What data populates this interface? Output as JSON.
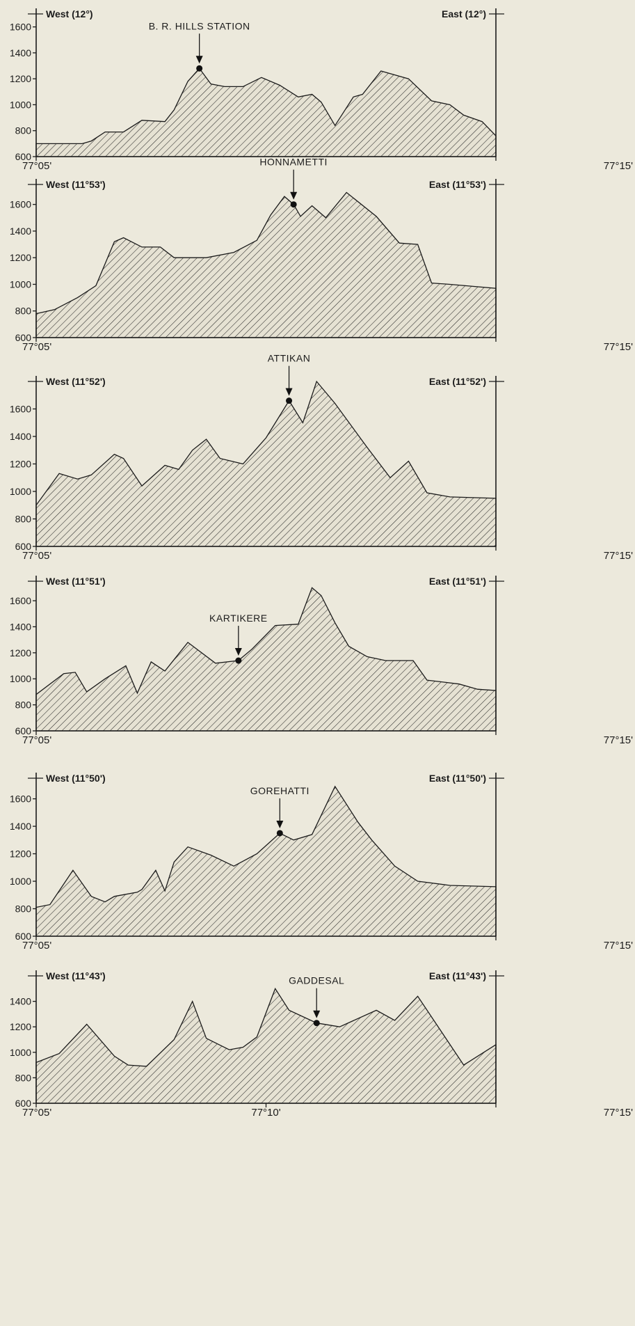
{
  "chart_data": [
    {
      "type": "area",
      "west_label": "West (12°)",
      "east_label": "East (12°)",
      "marker": {
        "name": "B. R. HILLS STATION",
        "x": 3.55,
        "y": 1280
      },
      "xlim_label": [
        "77°05'",
        "77°15'"
      ],
      "xlim": [
        0,
        10
      ],
      "ylim": [
        600,
        1700
      ],
      "yticks": [
        600,
        800,
        1000,
        1200,
        1400,
        1600
      ],
      "x": [
        0,
        0.5,
        1.0,
        1.2,
        1.5,
        1.9,
        2.3,
        2.8,
        3.0,
        3.3,
        3.55,
        3.8,
        4.1,
        4.5,
        4.9,
        5.3,
        5.7,
        6.0,
        6.2,
        6.5,
        6.9,
        7.1,
        7.5,
        8.1,
        8.6,
        9.0,
        9.3,
        9.7,
        10.0
      ],
      "values": [
        700,
        700,
        700,
        720,
        790,
        790,
        880,
        870,
        960,
        1180,
        1280,
        1160,
        1140,
        1140,
        1210,
        1150,
        1060,
        1080,
        1020,
        840,
        1060,
        1080,
        1260,
        1200,
        1030,
        1000,
        920,
        870,
        760
      ]
    },
    {
      "type": "area",
      "west_label": "West (11°53')",
      "east_label": "East (11°53')",
      "marker": {
        "name": "HONNAMETTI",
        "x": 5.6,
        "y": 1600
      },
      "xlim_label": [
        "77°05'",
        "77°15'"
      ],
      "xlim": [
        0,
        10
      ],
      "ylim": [
        600,
        1750
      ],
      "yticks": [
        600,
        800,
        1000,
        1200,
        1400,
        1600
      ],
      "x": [
        0,
        0.4,
        0.9,
        1.3,
        1.7,
        1.9,
        2.3,
        2.7,
        3.0,
        3.7,
        4.3,
        4.8,
        5.1,
        5.4,
        5.6,
        5.75,
        6.0,
        6.3,
        6.75,
        7.4,
        7.9,
        8.3,
        8.6,
        9.0,
        10.0
      ],
      "values": [
        780,
        810,
        900,
        990,
        1320,
        1350,
        1280,
        1280,
        1200,
        1200,
        1240,
        1330,
        1520,
        1660,
        1600,
        1510,
        1590,
        1500,
        1690,
        1510,
        1310,
        1300,
        1010,
        1000,
        970
      ]
    },
    {
      "type": "area",
      "west_label": "West (11°52')",
      "east_label": "East (11°52')",
      "marker": {
        "name": "ATTIKAN",
        "x": 5.5,
        "y": 1660
      },
      "xlim_label": [
        "77°05'",
        "77°15'"
      ],
      "xlim": [
        0,
        10
      ],
      "ylim": [
        600,
        1800
      ],
      "yticks": [
        600,
        800,
        1000,
        1200,
        1400,
        1600
      ],
      "x": [
        0,
        0.5,
        0.9,
        1.2,
        1.7,
        1.9,
        2.3,
        2.8,
        3.1,
        3.4,
        3.7,
        4.0,
        4.5,
        5.0,
        5.5,
        5.8,
        6.1,
        6.5,
        7.2,
        7.7,
        8.1,
        8.5,
        9.0,
        10.0
      ],
      "values": [
        900,
        1130,
        1090,
        1120,
        1270,
        1240,
        1040,
        1190,
        1160,
        1300,
        1380,
        1240,
        1200,
        1390,
        1660,
        1500,
        1800,
        1640,
        1320,
        1100,
        1220,
        990,
        960,
        950
      ]
    },
    {
      "type": "area",
      "west_label": "West (11°51')",
      "east_label": "East (11°51')",
      "marker": {
        "name": "KARTIKERE",
        "x": 4.4,
        "y": 1140
      },
      "xlim_label": [
        "77°05'",
        "77°15'"
      ],
      "xlim": [
        0,
        10
      ],
      "ylim": [
        600,
        1750
      ],
      "yticks": [
        600,
        800,
        1000,
        1200,
        1400,
        1600
      ],
      "x": [
        0,
        0.6,
        0.85,
        1.1,
        1.5,
        1.95,
        2.2,
        2.5,
        2.8,
        3.3,
        3.9,
        4.4,
        4.7,
        5.2,
        5.7,
        6.0,
        6.2,
        6.5,
        6.8,
        7.2,
        7.6,
        8.2,
        8.5,
        9.2,
        9.6,
        10.0
      ],
      "values": [
        880,
        1040,
        1050,
        900,
        1000,
        1100,
        890,
        1130,
        1060,
        1280,
        1120,
        1140,
        1230,
        1410,
        1420,
        1700,
        1640,
        1430,
        1250,
        1170,
        1140,
        1140,
        990,
        960,
        920,
        910
      ]
    },
    {
      "type": "area",
      "west_label": "West (11°50')",
      "east_label": "East (11°50')",
      "marker": {
        "name": "GOREHATTI",
        "x": 5.3,
        "y": 1350
      },
      "xlim_label": [
        "77°05'",
        "77°15'"
      ],
      "xlim": [
        0,
        10
      ],
      "ylim": [
        600,
        1750
      ],
      "yticks": [
        600,
        800,
        1000,
        1200,
        1400,
        1600
      ],
      "x": [
        0,
        0.3,
        0.8,
        1.2,
        1.5,
        1.7,
        2.2,
        2.3,
        2.6,
        2.8,
        3.0,
        3.3,
        3.8,
        4.3,
        4.8,
        5.3,
        5.6,
        6.0,
        6.5,
        7.0,
        7.3,
        7.8,
        8.3,
        9.0,
        10.0
      ],
      "values": [
        810,
        830,
        1080,
        890,
        850,
        890,
        920,
        940,
        1080,
        930,
        1140,
        1250,
        1190,
        1110,
        1200,
        1350,
        1300,
        1340,
        1690,
        1430,
        1300,
        1110,
        1000,
        970,
        960
      ]
    },
    {
      "type": "area",
      "west_label": "West (11°43')",
      "east_label": "East (11°43')",
      "marker": {
        "name": "GADDESAL",
        "x": 6.1,
        "y": 1230
      },
      "xlim_label": [
        "77°05'",
        "77°15'"
      ],
      "xlim_mid_label": "77°10'",
      "xlim": [
        0,
        10
      ],
      "ylim": [
        600,
        1600
      ],
      "yticks": [
        600,
        800,
        1000,
        1200,
        1400
      ],
      "x": [
        0,
        0.5,
        1.1,
        1.7,
        2.0,
        2.4,
        3.0,
        3.4,
        3.7,
        4.2,
        4.5,
        4.8,
        5.2,
        5.5,
        6.1,
        6.6,
        7.4,
        7.8,
        8.3,
        9.3,
        10.0
      ],
      "values": [
        920,
        990,
        1220,
        970,
        900,
        890,
        1100,
        1400,
        1110,
        1020,
        1040,
        1120,
        1500,
        1330,
        1230,
        1200,
        1330,
        1250,
        1440,
        900,
        1060
      ]
    }
  ]
}
